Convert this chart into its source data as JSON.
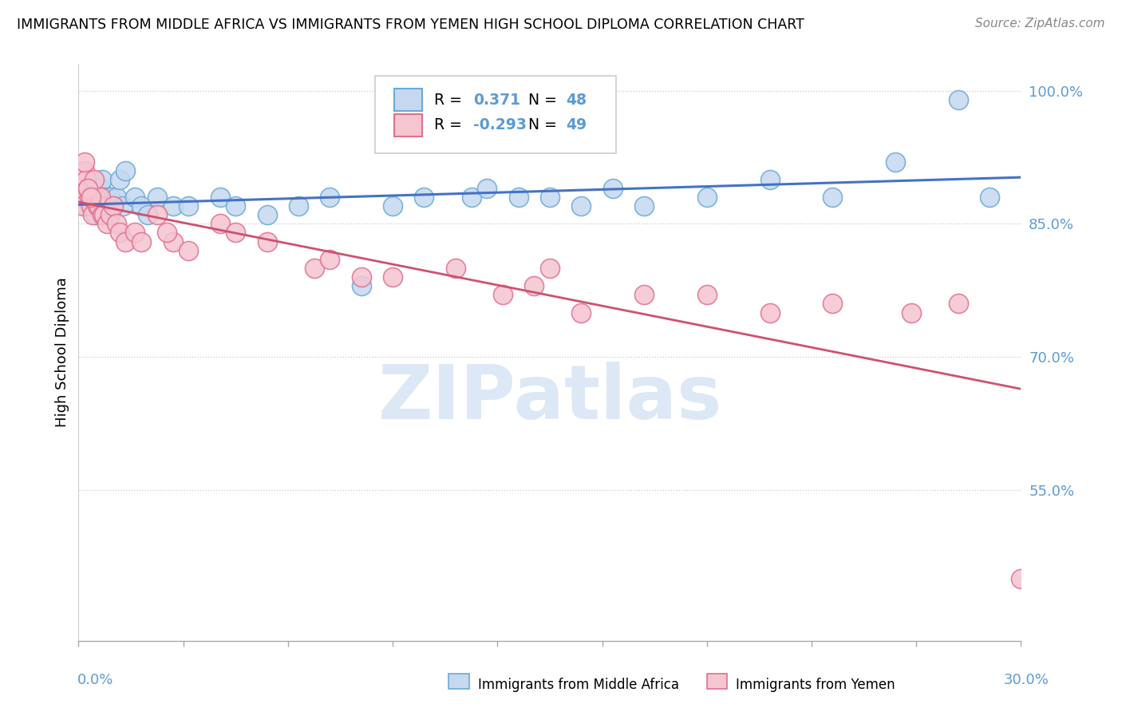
{
  "title": "IMMIGRANTS FROM MIDDLE AFRICA VS IMMIGRANTS FROM YEMEN HIGH SCHOOL DIPLOMA CORRELATION CHART",
  "source": "Source: ZipAtlas.com",
  "ylabel": "High School Diploma",
  "right_yticks": [
    100.0,
    85.0,
    70.0,
    55.0
  ],
  "xmin": 0.0,
  "xmax": 30.0,
  "ymin": 38.0,
  "ymax": 103.0,
  "blue_R": 0.371,
  "blue_N": 48,
  "pink_R": -0.293,
  "pink_N": 49,
  "blue_fill": "#c5d8f0",
  "blue_edge": "#6aaad4",
  "pink_fill": "#f5c5d0",
  "pink_edge": "#e07090",
  "blue_line": "#4472c4",
  "pink_line": "#d05070",
  "tick_color": "#5b9bd5",
  "grid_color": "#c0c8d8",
  "watermark_color": "#dce8f5",
  "blue_scatter_x": [
    0.15,
    0.25,
    0.3,
    0.4,
    0.45,
    0.5,
    0.55,
    0.6,
    0.65,
    0.7,
    0.75,
    0.8,
    0.85,
    0.9,
    0.95,
    1.0,
    1.1,
    1.2,
    1.3,
    1.4,
    1.5,
    1.8,
    2.0,
    2.2,
    2.5,
    3.0,
    3.5,
    4.5,
    5.0,
    6.0,
    7.0,
    8.0,
    9.0,
    10.0,
    11.0,
    12.5,
    13.0,
    14.0,
    15.0,
    16.0,
    17.0,
    18.0,
    20.0,
    22.0,
    24.0,
    26.0,
    28.0,
    29.0
  ],
  "blue_scatter_y": [
    88,
    87,
    88,
    89,
    87,
    88,
    86,
    87,
    88,
    89,
    90,
    88,
    87,
    86,
    87,
    88,
    87,
    88,
    90,
    87,
    91,
    88,
    87,
    86,
    88,
    87,
    87,
    88,
    87,
    86,
    87,
    88,
    78,
    87,
    88,
    88,
    89,
    88,
    88,
    87,
    89,
    87,
    88,
    90,
    88,
    92,
    99,
    88
  ],
  "pink_scatter_x": [
    0.1,
    0.15,
    0.2,
    0.25,
    0.3,
    0.35,
    0.4,
    0.45,
    0.5,
    0.55,
    0.6,
    0.65,
    0.7,
    0.75,
    0.8,
    0.9,
    1.0,
    1.1,
    1.2,
    1.3,
    1.5,
    1.8,
    2.0,
    2.5,
    3.0,
    3.5,
    4.5,
    5.0,
    6.0,
    7.5,
    8.0,
    9.0,
    10.0,
    12.0,
    13.5,
    14.5,
    15.0,
    16.0,
    18.0,
    20.0,
    22.0,
    24.0,
    26.5,
    28.0,
    30.0,
    0.2,
    0.3,
    0.4,
    2.8
  ],
  "pink_scatter_y": [
    88,
    87,
    91,
    90,
    89,
    88,
    87,
    86,
    90,
    88,
    87,
    87,
    88,
    86,
    86,
    85,
    86,
    87,
    85,
    84,
    83,
    84,
    83,
    86,
    83,
    82,
    85,
    84,
    83,
    80,
    81,
    79,
    79,
    80,
    77,
    78,
    80,
    75,
    77,
    77,
    75,
    76,
    75,
    76,
    45,
    92,
    89,
    88,
    84
  ]
}
